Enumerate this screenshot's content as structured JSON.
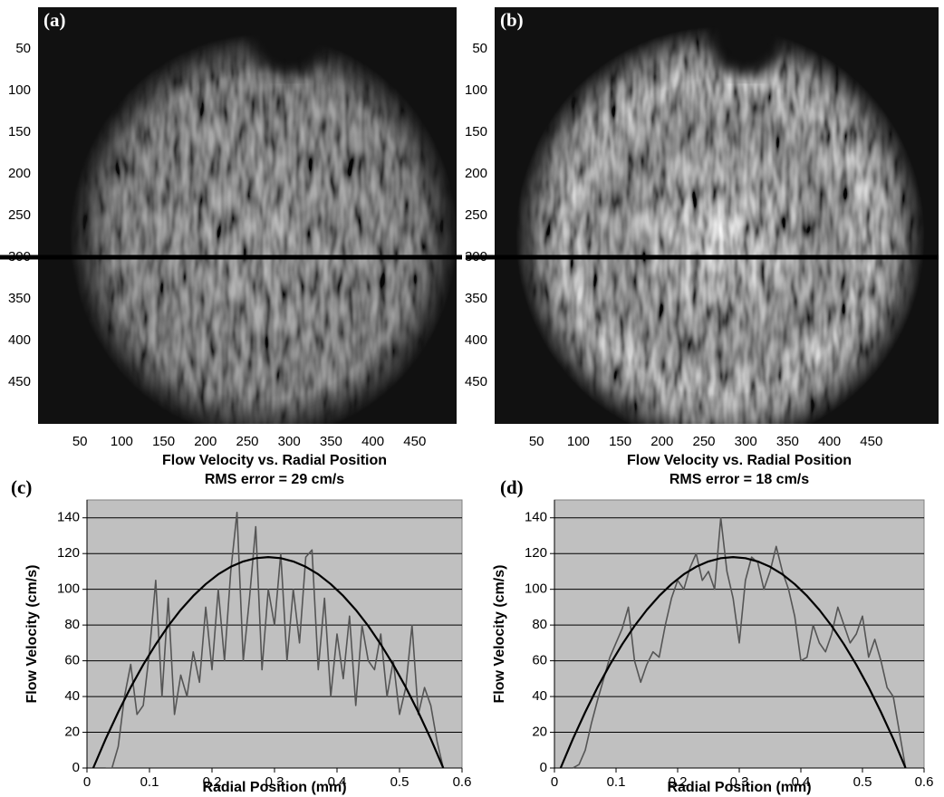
{
  "chart_data": [
    {
      "type": "image",
      "panel_label": "(a)",
      "xlim": [
        0,
        500
      ],
      "ylim": [
        0,
        500
      ],
      "xticks": [
        50,
        100,
        150,
        200,
        250,
        300,
        350,
        400,
        450
      ],
      "yticks": [
        50,
        100,
        150,
        200,
        250,
        300,
        350,
        400,
        450
      ],
      "marker_row": 300
    },
    {
      "type": "image",
      "panel_label": "(b)",
      "xlim": [
        0,
        500
      ],
      "ylim": [
        0,
        500
      ],
      "xticks": [
        50,
        100,
        150,
        200,
        250,
        300,
        350,
        400,
        450
      ],
      "yticks": [
        50,
        100,
        150,
        200,
        250,
        300,
        350,
        400,
        450
      ],
      "marker_row": 300
    },
    {
      "type": "line",
      "panel_label": "(c)",
      "title": "Flow Velocity vs. Radial Position",
      "subtitle": "RMS error = 29 cm/s",
      "xlabel": "Radial Position (mm)",
      "ylabel": "Flow Velocity (cm/s)",
      "xlim": [
        0,
        0.6
      ],
      "xticks": [
        0,
        0.1,
        0.2,
        0.3,
        0.4,
        0.5,
        0.6
      ],
      "ylim": [
        0,
        150
      ],
      "yticks": [
        0,
        20,
        40,
        60,
        80,
        100,
        120,
        140
      ],
      "grid": true,
      "series": [
        {
          "color": "#555555",
          "x": [
            0.03,
            0.04,
            0.05,
            0.06,
            0.07,
            0.08,
            0.09,
            0.1,
            0.11,
            0.12,
            0.13,
            0.14,
            0.15,
            0.16,
            0.17,
            0.18,
            0.19,
            0.2,
            0.21,
            0.22,
            0.23,
            0.24,
            0.25,
            0.26,
            0.27,
            0.28,
            0.29,
            0.3,
            0.31,
            0.32,
            0.33,
            0.34,
            0.35,
            0.36,
            0.37,
            0.38,
            0.39,
            0.4,
            0.41,
            0.42,
            0.43,
            0.44,
            0.45,
            0.46,
            0.47,
            0.48,
            0.49,
            0.5,
            0.51,
            0.52,
            0.53,
            0.54,
            0.55,
            0.56,
            0.57
          ],
          "values": [
            0,
            0,
            12,
            40,
            58,
            30,
            35,
            65,
            105,
            40,
            95,
            30,
            52,
            40,
            65,
            48,
            90,
            55,
            100,
            60,
            110,
            143,
            60,
            95,
            135,
            55,
            100,
            80,
            120,
            60,
            100,
            70,
            118,
            122,
            55,
            95,
            40,
            75,
            50,
            85,
            35,
            80,
            60,
            55,
            75,
            40,
            60,
            30,
            45,
            80,
            30,
            45,
            35,
            15,
            0
          ]
        },
        {
          "color": "#000000",
          "x": [
            0.01,
            0.03,
            0.05,
            0.07,
            0.09,
            0.11,
            0.13,
            0.15,
            0.17,
            0.19,
            0.21,
            0.23,
            0.25,
            0.27,
            0.29,
            0.31,
            0.33,
            0.35,
            0.37,
            0.39,
            0.41,
            0.43,
            0.45,
            0.47,
            0.49,
            0.51,
            0.53,
            0.55,
            0.57
          ],
          "values": [
            0,
            16.3,
            31.3,
            45.2,
            57.8,
            69.2,
            79.5,
            88.5,
            96.3,
            102.9,
            108.4,
            112.6,
            115.6,
            117.4,
            118,
            117.4,
            115.6,
            112.6,
            108.4,
            102.9,
            96.3,
            88.5,
            79.5,
            69.2,
            57.8,
            45.2,
            31.3,
            16.3,
            0
          ]
        }
      ]
    },
    {
      "type": "line",
      "panel_label": "(d)",
      "title": "Flow Velocity vs. Radial Position",
      "subtitle": "RMS error = 18 cm/s",
      "xlabel": "Radial Position (mm)",
      "ylabel": "Flow Velocity (cm/s)",
      "xlim": [
        0,
        0.6
      ],
      "xticks": [
        0,
        0.1,
        0.2,
        0.3,
        0.4,
        0.5,
        0.6
      ],
      "ylim": [
        0,
        150
      ],
      "yticks": [
        0,
        20,
        40,
        60,
        80,
        100,
        120,
        140
      ],
      "grid": true,
      "series": [
        {
          "color": "#555555",
          "x": [
            0.03,
            0.04,
            0.05,
            0.06,
            0.07,
            0.08,
            0.09,
            0.1,
            0.11,
            0.12,
            0.13,
            0.14,
            0.15,
            0.16,
            0.17,
            0.18,
            0.19,
            0.2,
            0.21,
            0.22,
            0.23,
            0.24,
            0.25,
            0.26,
            0.27,
            0.28,
            0.29,
            0.3,
            0.31,
            0.32,
            0.33,
            0.34,
            0.35,
            0.36,
            0.37,
            0.38,
            0.39,
            0.4,
            0.41,
            0.42,
            0.43,
            0.44,
            0.45,
            0.46,
            0.47,
            0.48,
            0.49,
            0.5,
            0.51,
            0.52,
            0.53,
            0.54,
            0.55,
            0.56,
            0.57
          ],
          "values": [
            0,
            2,
            10,
            25,
            38,
            50,
            62,
            70,
            78,
            90,
            60,
            48,
            58,
            65,
            62,
            80,
            95,
            105,
            100,
            112,
            120,
            105,
            110,
            100,
            140,
            110,
            95,
            70,
            105,
            118,
            115,
            100,
            110,
            124,
            110,
            100,
            85,
            60,
            62,
            80,
            70,
            65,
            75,
            90,
            80,
            70,
            75,
            85,
            62,
            72,
            60,
            45,
            40,
            20,
            0
          ]
        },
        {
          "color": "#000000",
          "x": [
            0.01,
            0.03,
            0.05,
            0.07,
            0.09,
            0.11,
            0.13,
            0.15,
            0.17,
            0.19,
            0.21,
            0.23,
            0.25,
            0.27,
            0.29,
            0.31,
            0.33,
            0.35,
            0.37,
            0.39,
            0.41,
            0.43,
            0.45,
            0.47,
            0.49,
            0.51,
            0.53,
            0.55,
            0.57
          ],
          "values": [
            0,
            16.3,
            31.3,
            45.2,
            57.8,
            69.2,
            79.5,
            88.5,
            96.3,
            102.9,
            108.4,
            112.6,
            115.6,
            117.4,
            118,
            117.4,
            115.6,
            112.6,
            108.4,
            102.9,
            96.3,
            88.5,
            79.5,
            69.2,
            57.8,
            45.2,
            31.3,
            16.3,
            0
          ]
        }
      ]
    }
  ]
}
